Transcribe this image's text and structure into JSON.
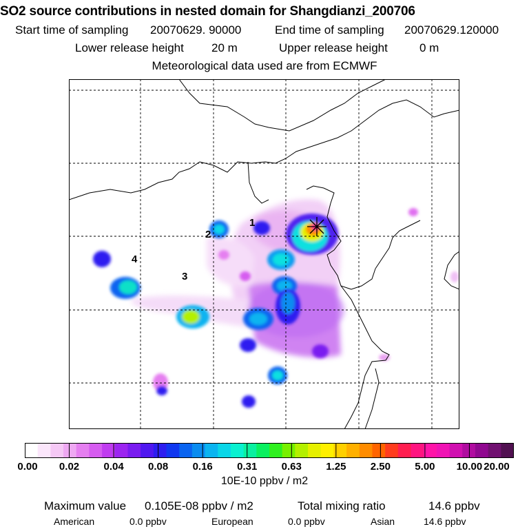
{
  "header": {
    "title": "SO2 source contributions in nested domain for Shangdianzi_200706",
    "start_label": "Start time of sampling",
    "start_value": "20070629. 90000",
    "end_label": "End time of sampling",
    "end_value": "20070629.120000",
    "lower_label": "Lower release height",
    "lower_value": "20 m",
    "upper_label": "Upper release height",
    "upper_value": "0 m",
    "met_text": "Meteorological data used are from ECMWF"
  },
  "map": {
    "source_labels": [
      "1",
      "2",
      "3",
      "4"
    ],
    "receptor_symbol": "asterisk",
    "colors": {
      "coast": "#000000",
      "grid": "#000000",
      "receptor": "#000000"
    }
  },
  "colorbar": {
    "ticks": [
      "0.00",
      "0.02",
      "0.04",
      "0.08",
      "0.16",
      "0.31",
      "0.63",
      "1.25",
      "2.50",
      "5.00",
      "10.00",
      "20.00"
    ],
    "unit_label": "10E-10 ppbv / m2",
    "colors": [
      "#ffffff",
      "#fbe6fb",
      "#f5c8f5",
      "#eea8f2",
      "#e57ff0",
      "#d65cf0",
      "#c03cf0",
      "#9c25f0",
      "#7a1cf0",
      "#5018f0",
      "#2d1ef0",
      "#1038f0",
      "#0a64f0",
      "#0a8cf0",
      "#0ab4f0",
      "#0ad6e8",
      "#0af0d0",
      "#0af0a0",
      "#0af060",
      "#30f020",
      "#78f000",
      "#b4f000",
      "#e6f000",
      "#fff000",
      "#ffd000",
      "#ffb000",
      "#ff8c00",
      "#ff6400",
      "#ff3c1e",
      "#ff1e50",
      "#ff1480",
      "#ff14a8",
      "#f014b4",
      "#d010b0",
      "#b00ca0",
      "#900890",
      "#701070",
      "#501050"
    ]
  },
  "stats": {
    "max_label": "Maximum value",
    "max_value": "0.105E-08 ppbv / m2",
    "total_label": "Total mixing ratio",
    "total_value": "14.6 ppbv",
    "american_label": "American",
    "american_value": "0.0 ppbv",
    "european_label": "European",
    "european_value": "0.0 ppbv",
    "asian_label": "Asian",
    "asian_value": "14.6 ppbv"
  }
}
